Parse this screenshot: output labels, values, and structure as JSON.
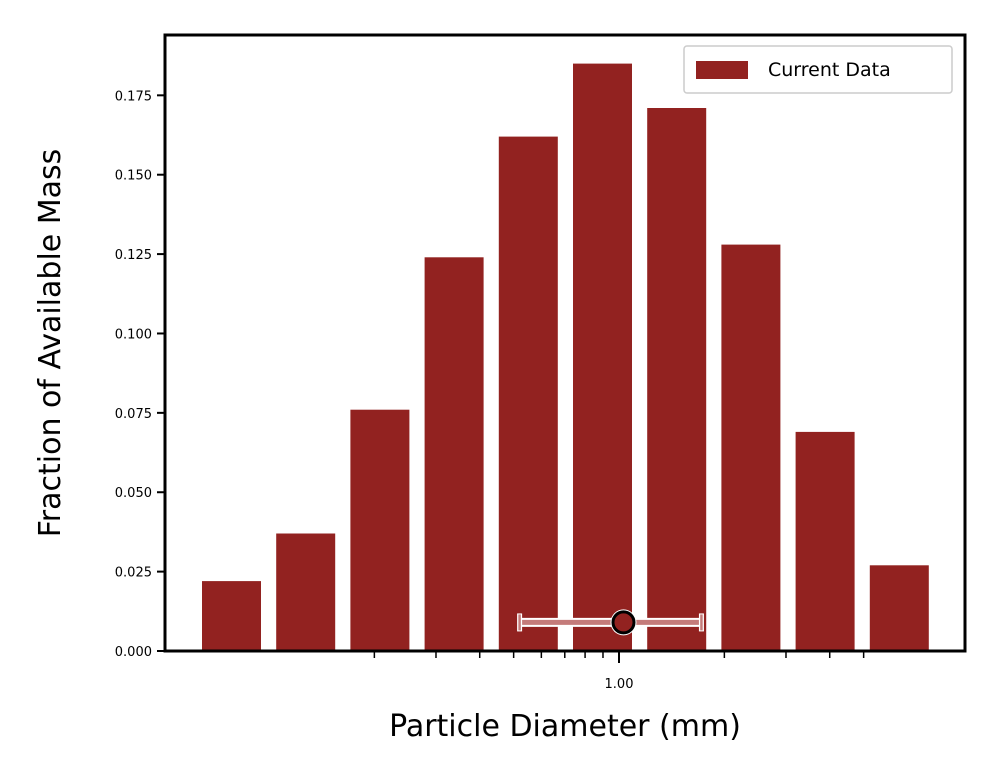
{
  "chart_data": {
    "type": "bar",
    "xlabel": "Particle Diameter (mm)",
    "ylabel": "Fraction of Available Mass",
    "x_scale": "log",
    "xtick_labels": [
      "1.00"
    ],
    "ylim": [
      0,
      0.194
    ],
    "yticks": [
      "0.000",
      "0.025",
      "0.050",
      "0.075",
      "0.100",
      "0.125",
      "0.150",
      "0.175"
    ],
    "grid": false,
    "legend": {
      "placement": "top-right",
      "entries": [
        "Current Data"
      ]
    },
    "series": [
      {
        "name": "Current Data",
        "color": "#922220",
        "values": [
          0.022,
          0.037,
          0.076,
          0.124,
          0.162,
          0.185,
          0.171,
          0.128,
          0.069,
          0.027
        ]
      }
    ],
    "marker": {
      "x_mm": 1.03,
      "y": 0.009,
      "xerr_low_mm": 0.52,
      "xerr_high_mm": 1.72,
      "color": "#000000",
      "errorbar_color": "#c47b7a"
    }
  }
}
